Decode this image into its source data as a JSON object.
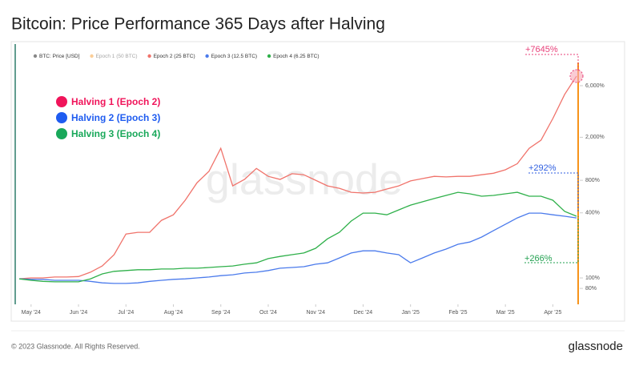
{
  "chart_data": {
    "type": "line",
    "title": "Bitcoin: Price Performance 365 Days after Halving",
    "x": [
      null,
      "May '24",
      null,
      null,
      null,
      "Jun '24",
      null,
      null,
      null,
      "Jul '24",
      null,
      null,
      null,
      "Aug '24",
      null,
      null,
      null,
      "Sep '24",
      null,
      null,
      null,
      "Oct '24",
      null,
      null,
      null,
      "Nov '24",
      null,
      null,
      null,
      "Dec '24",
      null,
      null,
      null,
      "Jan '25",
      null,
      null,
      null,
      "Feb '25",
      null,
      null,
      null,
      "Mar '25",
      null,
      null,
      null,
      "Apr '25",
      null,
      null
    ],
    "series": [
      {
        "name": "BTC: Price [USD]",
        "color": "#888888",
        "values": [
          null,
          null,
          null,
          null,
          null,
          null,
          null,
          null,
          null,
          null,
          null,
          null,
          null,
          null,
          null,
          null,
          null,
          null,
          null,
          null,
          null,
          null,
          null,
          null,
          null,
          null,
          null,
          null,
          null,
          null,
          null,
          null,
          null,
          null,
          null,
          null,
          null,
          null,
          null,
          null,
          null,
          null,
          null,
          null,
          null,
          null,
          null,
          null
        ]
      },
      {
        "name": "Epoch 1 (50 BTC)",
        "color": "#f7931a",
        "hidden": true,
        "values": [
          null,
          null,
          null,
          null,
          null,
          null,
          null,
          null,
          null,
          null,
          null,
          null,
          null,
          null,
          null,
          null,
          null,
          null,
          null,
          null,
          null,
          null,
          null,
          null,
          null,
          null,
          null,
          null,
          null,
          null,
          null,
          null,
          null,
          null,
          null,
          null,
          null,
          null,
          null,
          null,
          null,
          null,
          null,
          null,
          null,
          null,
          null,
          null
        ]
      },
      {
        "name": "Epoch 2 (25 BTC)",
        "color": "#f0736b",
        "values": [
          98,
          100,
          100,
          102,
          102,
          103,
          113,
          129,
          164,
          255,
          264,
          264,
          341,
          384,
          523,
          760,
          967,
          1580,
          710,
          815,
          1030,
          870,
          815,
          920,
          900,
          800,
          710,
          675,
          620,
          610,
          620,
          665,
          710,
          790,
          830,
          870,
          860,
          870,
          870,
          900,
          930,
          1000,
          1140,
          1580,
          1880,
          2980,
          4990,
          7360
        ]
      },
      {
        "name": "Epoch 3 (12.5 BTC)",
        "color": "#4b7bec",
        "values": [
          98,
          97,
          97,
          95,
          95,
          95,
          93,
          90,
          89,
          89,
          90,
          93,
          95,
          97,
          98,
          100,
          102,
          105,
          107,
          111,
          113,
          117,
          123,
          125,
          127,
          134,
          138,
          153,
          170,
          178,
          178,
          170,
          164,
          138,
          153,
          170,
          185,
          205,
          215,
          239,
          274,
          313,
          359,
          398,
          398,
          384,
          372,
          359
        ]
      },
      {
        "name": "Epoch 4 (6.25 BTC)",
        "color": "#2fb04a",
        "values": [
          98,
          95,
          93,
          92,
          92,
          92,
          98,
          109,
          115,
          117,
          119,
          119,
          121,
          121,
          123,
          123,
          125,
          127,
          129,
          134,
          138,
          151,
          158,
          164,
          170,
          188,
          230,
          264,
          336,
          398,
          398,
          384,
          426,
          472,
          506,
          542,
          580,
          620,
          600,
          570,
          580,
          600,
          620,
          570,
          570,
          523,
          412,
          372
        ]
      }
    ],
    "log_scale": true,
    "grid": false,
    "ylim": [
      57,
      14560
    ],
    "yticks": [
      {
        "value": 80,
        "label": "80%"
      },
      {
        "value": 100,
        "label": "100%"
      },
      {
        "value": 400,
        "label": "400%"
      },
      {
        "value": 800,
        "label": "800%"
      },
      {
        "value": 2000,
        "label": "2,000%"
      },
      {
        "value": 6000,
        "label": "6,000%"
      }
    ],
    "halvings": [
      {
        "label": "Halving 1 (Epoch 2)",
        "color": "#f0145a"
      },
      {
        "label": "Halving 2 (Epoch 3)",
        "color": "#1f5cf0"
      },
      {
        "label": "Halving 3 (Epoch 4)",
        "color": "#19a85a"
      }
    ],
    "annotations": [
      {
        "text": "+7645%",
        "color": "#e8407a"
      },
      {
        "text": "+292%",
        "color": "#2f5fe0"
      },
      {
        "text": "+266%",
        "color": "#22a050"
      }
    ],
    "watermark": "glassnode",
    "footer": "© 2023 Glassnode. All Rights Reserved."
  }
}
